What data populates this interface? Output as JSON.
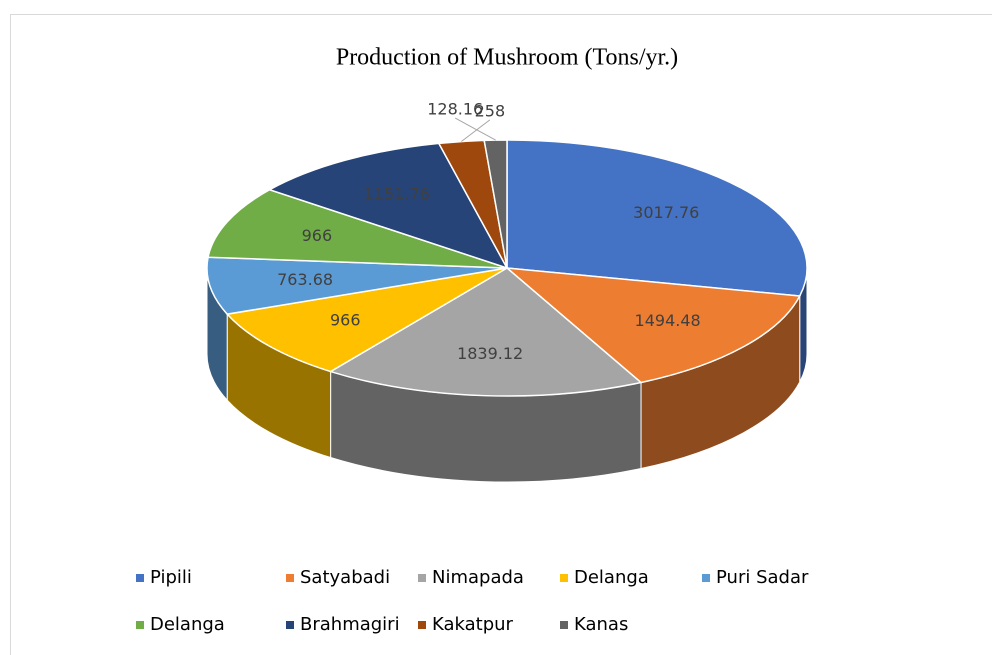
{
  "chart_data": {
    "type": "pie3d",
    "title": "Production of Mushroom (Tons/yr.)",
    "categories": [
      "Pipili",
      "Satyabadi",
      "Nimapada",
      "Delanga",
      "Puri Sadar",
      "Delanga",
      "Brahmagiri",
      "Kakatpur",
      "Kanas"
    ],
    "values": [
      3017.76,
      1494.48,
      1839.12,
      966,
      763.68,
      966,
      1151.76,
      258,
      128.16
    ],
    "colors": [
      "#4472c4",
      "#ed7d31",
      "#a5a5a5",
      "#ffc000",
      "#5b9bd5",
      "#70ad47",
      "#264478",
      "#9e480e",
      "#636363"
    ],
    "legend": "bottom"
  }
}
